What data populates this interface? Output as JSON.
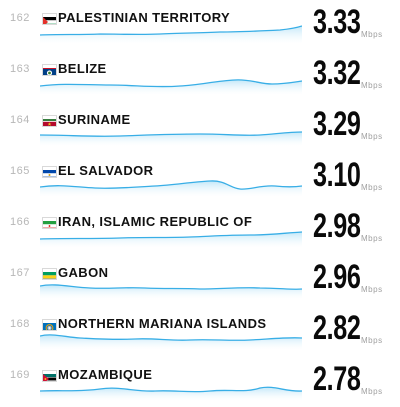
{
  "ranking": {
    "rows": [
      {
        "rank": "162",
        "country": "PALESTINIAN TERRITORY",
        "flag": "ps",
        "speed": "3.33",
        "unit": "Mbps"
      },
      {
        "rank": "163",
        "country": "BELIZE",
        "flag": "bz",
        "speed": "3.32",
        "unit": "Mbps"
      },
      {
        "rank": "164",
        "country": "SURINAME",
        "flag": "sr",
        "speed": "3.29",
        "unit": "Mbps"
      },
      {
        "rank": "165",
        "country": "EL SALVADOR",
        "flag": "sv",
        "speed": "3.10",
        "unit": "Mbps"
      },
      {
        "rank": "166",
        "country": "IRAN, ISLAMIC REPUBLIC OF",
        "flag": "ir",
        "speed": "2.98",
        "unit": "Mbps"
      },
      {
        "rank": "167",
        "country": "GABON",
        "flag": "ga",
        "speed": "2.96",
        "unit": "Mbps"
      },
      {
        "rank": "168",
        "country": "NORTHERN MARIANA ISLANDS",
        "flag": "mp",
        "speed": "2.82",
        "unit": "Mbps"
      },
      {
        "rank": "169",
        "country": "MOZAMBIQUE",
        "flag": "mz",
        "speed": "2.78",
        "unit": "Mbps"
      }
    ]
  },
  "colors": {
    "sparkline_stroke": "#38aee6",
    "sparkline_fill_top": "#bfe6f8",
    "sparkline_fill_bottom": "#ffffff",
    "rank_text": "#b7b7b7",
    "speed_text": "#0a0a0a"
  }
}
